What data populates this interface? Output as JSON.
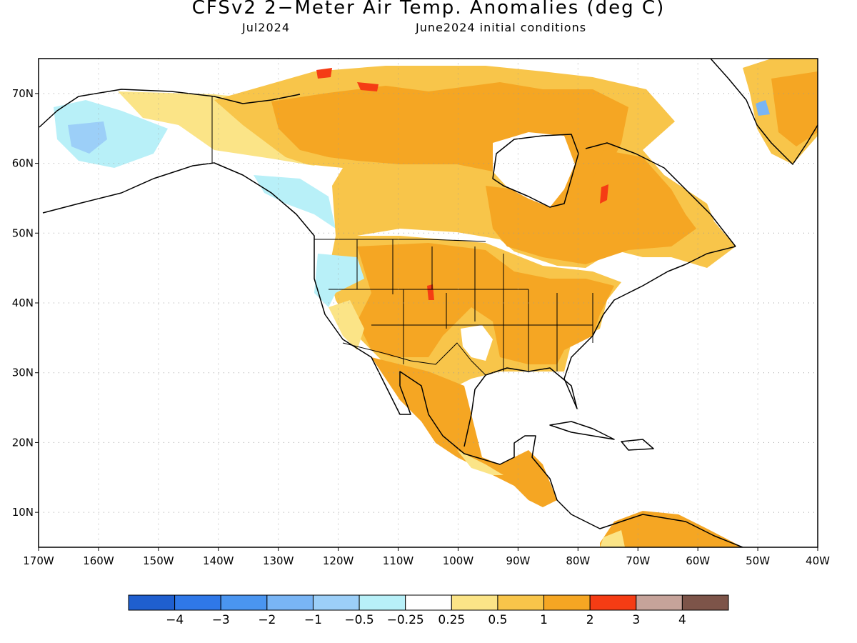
{
  "header": {
    "title": "CFSv2 2−Meter Air Temp. Anomalies (deg C)",
    "month": "Jul2024",
    "conditions": "June2024 initial conditions"
  },
  "map": {
    "lon_range": [
      -170,
      -40
    ],
    "lat_range": [
      5,
      75
    ],
    "grid": "dotted",
    "lon_labels": [
      "170W",
      "160W",
      "150W",
      "140W",
      "130W",
      "120W",
      "110W",
      "100W",
      "90W",
      "80W",
      "70W",
      "60W",
      "50W",
      "40W"
    ],
    "lat_labels": [
      "10N",
      "20N",
      "30N",
      "40N",
      "50N",
      "60N",
      "70N"
    ]
  },
  "colorbar": {
    "colors": [
      "#1f5fcf",
      "#2f78e8",
      "#4a95f0",
      "#79b5f5",
      "#9ccff8",
      "#b8f0f8",
      "#ffffff",
      "#fbe487",
      "#f8c54a",
      "#f5a623",
      "#f53c14",
      "#c6a39a",
      "#7d5449"
    ],
    "labels": [
      "−4",
      "−3",
      "−2",
      "−1",
      "−0.5",
      "−0.25",
      "0.25",
      "0.5",
      "1",
      "2",
      "3",
      "4"
    ]
  },
  "colors": {
    "warm_05_1": "#fbe487",
    "warm_1_2": "#f8c54a",
    "warm_2_3": "#f5a623",
    "warm_3_4": "#f53c14",
    "cool_025_05": "#b8f0f8",
    "cool_05_1": "#9ccff8",
    "cool_1_2": "#79b5f5",
    "coast": "#000000"
  }
}
